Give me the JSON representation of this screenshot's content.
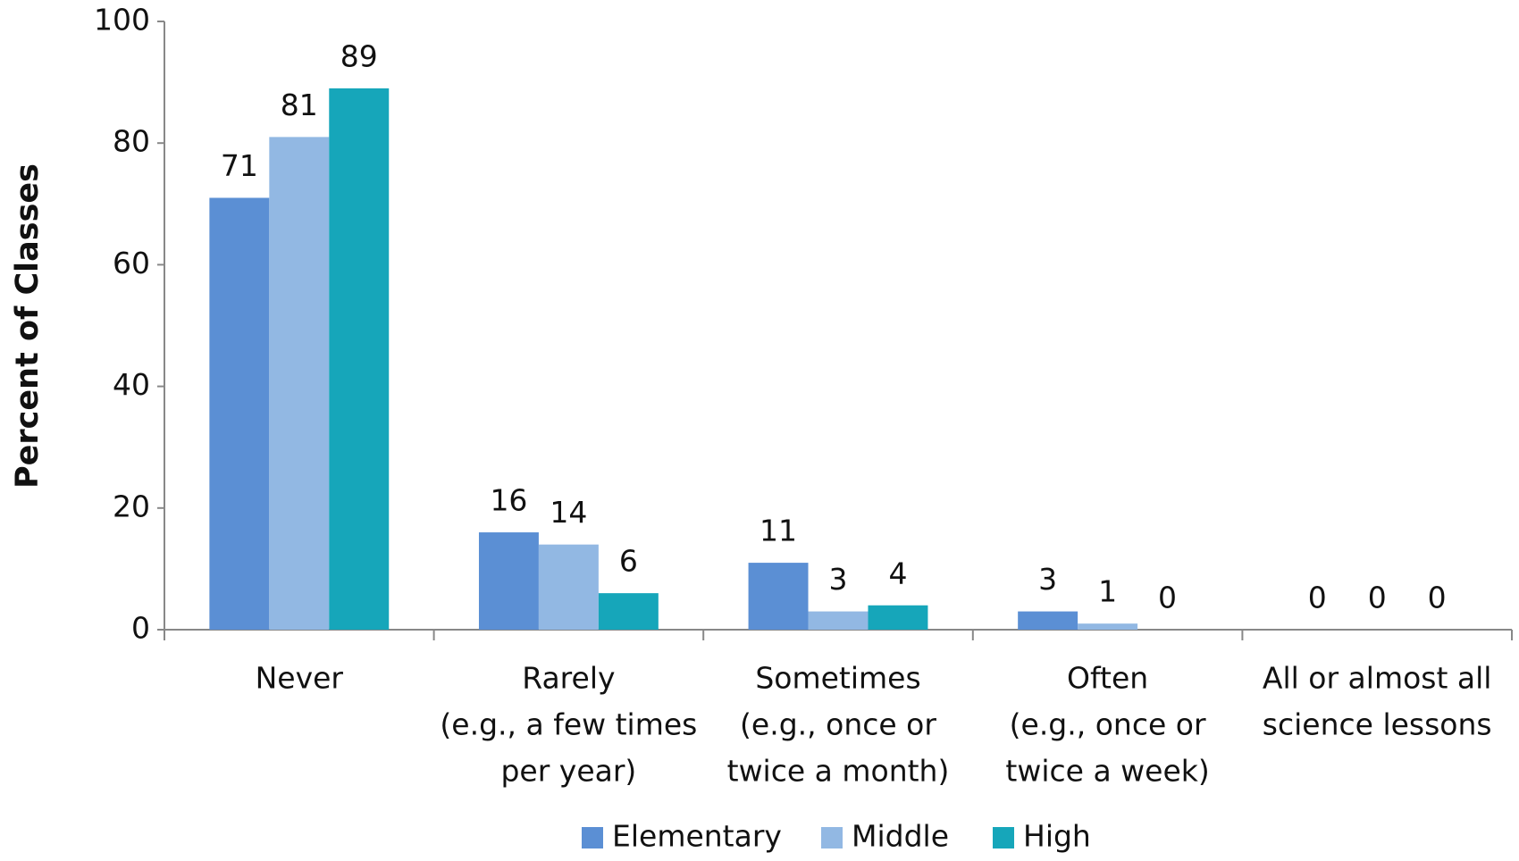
{
  "chart_data": {
    "type": "bar",
    "y_label": "Percent of Classes",
    "categories": [
      [
        "Never"
      ],
      [
        "Rarely",
        "(e.g., a few times",
        "per year)"
      ],
      [
        "Sometimes",
        "(e.g., once or",
        "twice a month)"
      ],
      [
        "Often",
        "(e.g., once or",
        "twice a week)"
      ],
      [
        "All or almost all",
        "science lessons"
      ]
    ],
    "series": [
      {
        "name": "Elementary",
        "color": "#5b8fd4",
        "values": [
          71,
          16,
          11,
          3,
          0
        ]
      },
      {
        "name": "Middle",
        "color": "#92b8e3",
        "values": [
          81,
          14,
          3,
          1,
          0
        ]
      },
      {
        "name": "High",
        "color": "#16a6ba",
        "values": [
          89,
          6,
          4,
          0,
          0
        ]
      }
    ],
    "ylim": [
      0,
      100
    ],
    "yticks": [
      0,
      20,
      40,
      60,
      80,
      100
    ],
    "grid": false,
    "legend": "bottom"
  }
}
